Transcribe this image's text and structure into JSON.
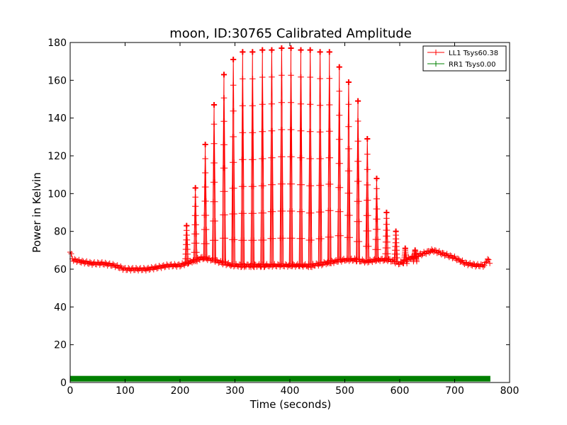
{
  "chart_data": {
    "type": "line",
    "title": "moon, ID:30765 Calibrated Amplitude",
    "xlabel": "Time (seconds)",
    "ylabel": "Power in Kelvin",
    "xlim": [
      0,
      800
    ],
    "ylim": [
      0,
      180
    ],
    "xticks": [
      "0",
      "100",
      "200",
      "300",
      "400",
      "500",
      "600",
      "700",
      "800"
    ],
    "yticks": [
      "0",
      "20",
      "40",
      "60",
      "80",
      "100",
      "120",
      "140",
      "160",
      "180"
    ],
    "grid": false,
    "legend_position": "top-right",
    "series": [
      {
        "name": "LL1 Tsys60.38",
        "color": "#ff0000",
        "marker": "plus",
        "baseline": [
          [
            0,
            69
          ],
          [
            5,
            65
          ],
          [
            20,
            64
          ],
          [
            40,
            63
          ],
          [
            60,
            63
          ],
          [
            80,
            62
          ],
          [
            100,
            60
          ],
          [
            120,
            60
          ],
          [
            140,
            60
          ],
          [
            160,
            61
          ],
          [
            180,
            62
          ],
          [
            200,
            62
          ],
          [
            220,
            64
          ],
          [
            240,
            66
          ],
          [
            260,
            65
          ],
          [
            280,
            63
          ],
          [
            300,
            62
          ],
          [
            320,
            62
          ],
          [
            360,
            62
          ],
          [
            400,
            62
          ],
          [
            440,
            62
          ],
          [
            460,
            63
          ],
          [
            480,
            64
          ],
          [
            500,
            65
          ],
          [
            520,
            65
          ],
          [
            540,
            64
          ],
          [
            560,
            65
          ],
          [
            580,
            65
          ],
          [
            600,
            63
          ],
          [
            620,
            66
          ],
          [
            640,
            68
          ],
          [
            660,
            70
          ],
          [
            680,
            68
          ],
          [
            700,
            66
          ],
          [
            720,
            63
          ],
          [
            740,
            62
          ],
          [
            755,
            62
          ],
          [
            760,
            66
          ],
          [
            765,
            62
          ]
        ],
        "peaks": [
          {
            "x": 212,
            "y": 83
          },
          {
            "x": 228,
            "y": 103
          },
          {
            "x": 246,
            "y": 126
          },
          {
            "x": 262,
            "y": 147
          },
          {
            "x": 280,
            "y": 163
          },
          {
            "x": 297,
            "y": 171
          },
          {
            "x": 314,
            "y": 175
          },
          {
            "x": 332,
            "y": 175
          },
          {
            "x": 350,
            "y": 176
          },
          {
            "x": 367,
            "y": 176
          },
          {
            "x": 385,
            "y": 177
          },
          {
            "x": 402,
            "y": 177
          },
          {
            "x": 420,
            "y": 176
          },
          {
            "x": 437,
            "y": 176
          },
          {
            "x": 455,
            "y": 175
          },
          {
            "x": 472,
            "y": 175
          },
          {
            "x": 490,
            "y": 167
          },
          {
            "x": 507,
            "y": 159
          },
          {
            "x": 524,
            "y": 149
          },
          {
            "x": 541,
            "y": 129
          },
          {
            "x": 558,
            "y": 108
          },
          {
            "x": 576,
            "y": 90
          },
          {
            "x": 593,
            "y": 80
          },
          {
            "x": 610,
            "y": 71
          },
          {
            "x": 628,
            "y": 70
          }
        ],
        "peak_base": [
          {
            "x": 212,
            "y": 63
          },
          {
            "x": 228,
            "y": 64
          },
          {
            "x": 246,
            "y": 66
          },
          {
            "x": 262,
            "y": 65
          },
          {
            "x": 280,
            "y": 64
          },
          {
            "x": 297,
            "y": 62
          },
          {
            "x": 314,
            "y": 61
          },
          {
            "x": 332,
            "y": 61
          },
          {
            "x": 350,
            "y": 61
          },
          {
            "x": 367,
            "y": 62
          },
          {
            "x": 385,
            "y": 62
          },
          {
            "x": 402,
            "y": 62
          },
          {
            "x": 420,
            "y": 62
          },
          {
            "x": 437,
            "y": 61
          },
          {
            "x": 455,
            "y": 62
          },
          {
            "x": 472,
            "y": 63
          },
          {
            "x": 490,
            "y": 65
          },
          {
            "x": 507,
            "y": 65
          },
          {
            "x": 524,
            "y": 64
          },
          {
            "x": 541,
            "y": 64
          },
          {
            "x": 558,
            "y": 65
          },
          {
            "x": 576,
            "y": 65
          },
          {
            "x": 593,
            "y": 64
          },
          {
            "x": 610,
            "y": 63
          },
          {
            "x": 628,
            "y": 64
          }
        ]
      },
      {
        "name": "RR1 Tsys0.00",
        "color": "#008000",
        "marker": "plus",
        "x_range": [
          0,
          765
        ],
        "value": 2
      }
    ]
  }
}
